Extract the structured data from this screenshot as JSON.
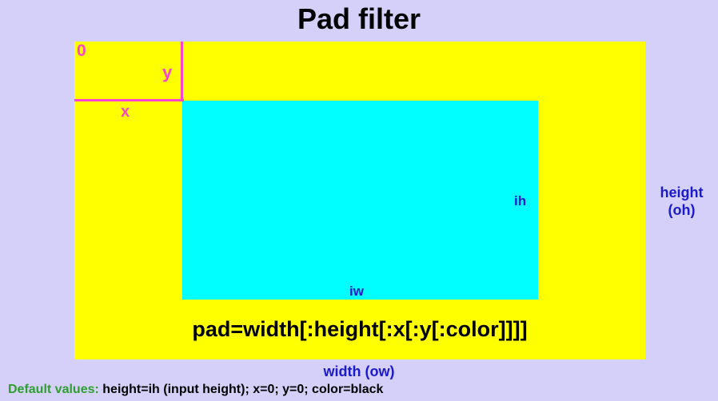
{
  "title": "Pad filter",
  "diagram": {
    "origin_label": "0",
    "x_label": "x",
    "y_label": "y",
    "input_height_label": "ih",
    "input_width_label": "iw",
    "output_height_line1": "height",
    "output_height_line2": "(oh)",
    "output_width_label": "width (ow)",
    "syntax": "pad=width[:height[:x[:y[:color]]]]"
  },
  "footer": {
    "defaults_label": "Default values:",
    "defaults_text": "height=ih (input height); x=0; y=0; color=black"
  },
  "colors": {
    "background": "#d4d0fa",
    "pad_area": "#ffff00",
    "input_area": "#00ffff",
    "offset_guides": "#ff44cc",
    "dimension_labels": "#1a1acc",
    "defaults_label": "#2e9e2e",
    "text": "#000000"
  }
}
